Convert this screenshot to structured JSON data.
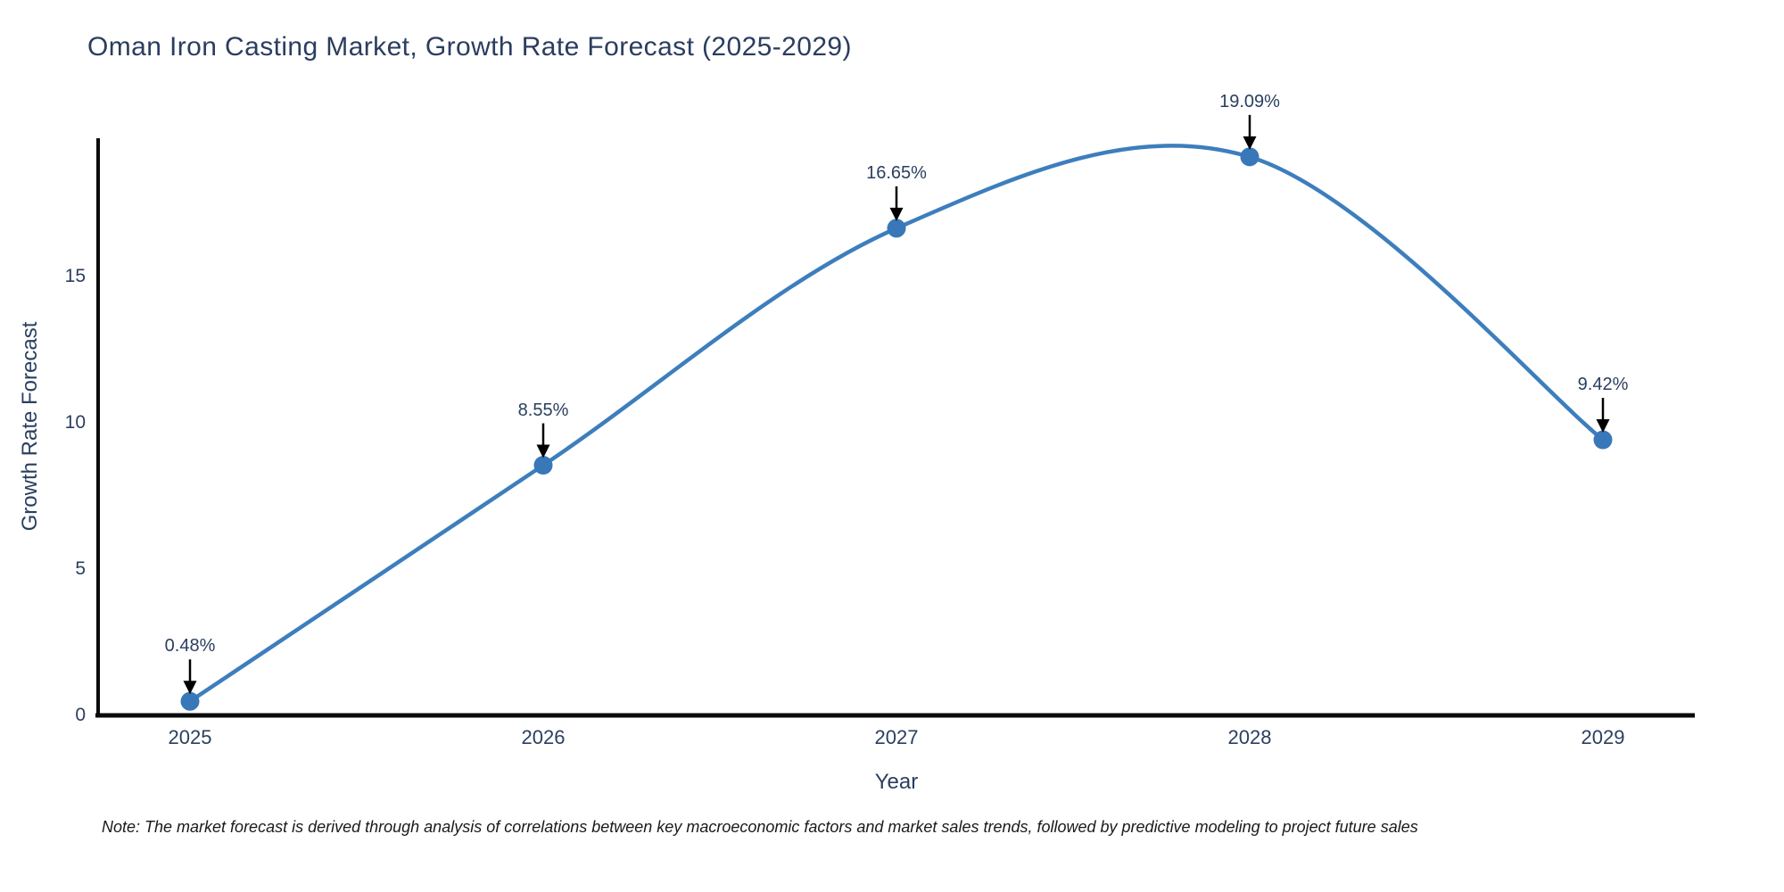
{
  "note": "Note: The market forecast is derived through analysis of correlations between key macroeconomic factors and market sales trends, followed by predictive modeling to project future sales",
  "chart_data": {
    "type": "line",
    "title": "Oman Iron Casting Market, Growth Rate Forecast (2025-2029)",
    "xlabel": "Year",
    "ylabel": "Growth Rate Forecast",
    "x": [
      "2025",
      "2026",
      "2027",
      "2028",
      "2029"
    ],
    "series": [
      {
        "name": "Growth Rate Forecast",
        "values": [
          0.48,
          8.55,
          16.65,
          19.09,
          9.42
        ]
      }
    ],
    "point_labels": [
      "0.48%",
      "8.55%",
      "16.65%",
      "19.09%",
      "9.42%"
    ],
    "yticks": [
      0,
      5,
      10,
      15
    ],
    "ylim": [
      0,
      19.9
    ],
    "grid": false,
    "legend_position": "none",
    "line_shape": "spline",
    "colors": {
      "line": "#3d7ebd",
      "marker": "#3878b8",
      "axis": "#0a0a0a",
      "text": "#2a3f5f",
      "annotation_arrow": "#000000",
      "note_text": "#1a1a1a",
      "background": "#ffffff"
    }
  }
}
